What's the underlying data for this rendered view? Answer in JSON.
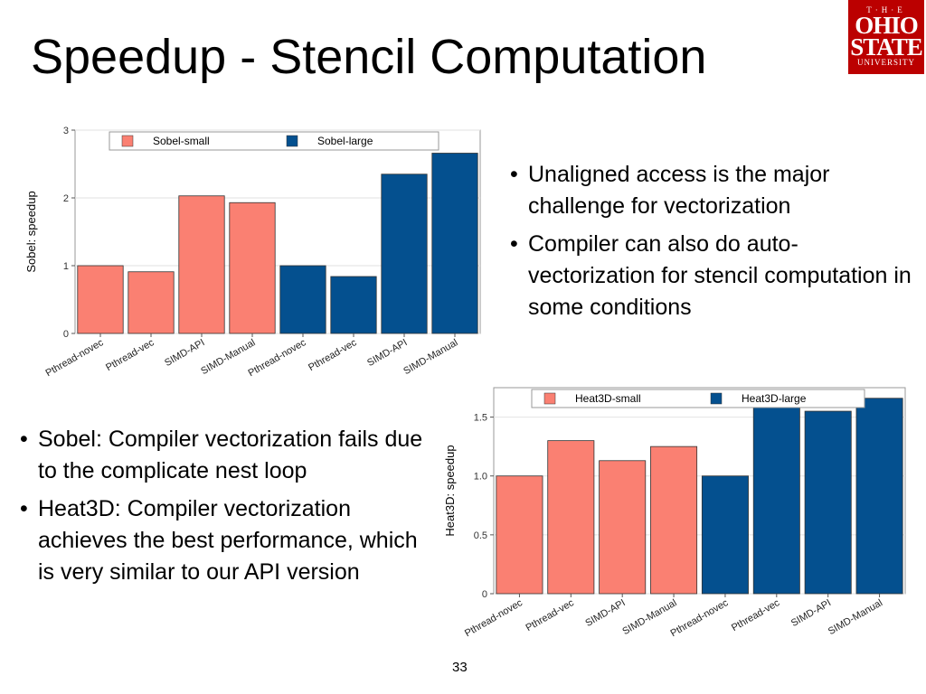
{
  "title": "Speedup - Stencil Computation",
  "logo": {
    "line1": "T·H·E",
    "line2": "OHIO",
    "line3": "STATE",
    "line4": "UNIVERSITY"
  },
  "bullets_right": [
    "Unaligned access is the major challenge for vectorization",
    "Compiler can also do auto-vectorization for stencil computation in some conditions"
  ],
  "bullets_left": [
    "Sobel: Compiler vectorization fails due to the complicate nest loop",
    "Heat3D: Compiler vectorization achieves the best performance, which is very similar to our API version"
  ],
  "page_number": "33",
  "colors": {
    "small": "#fa8072",
    "large": "#04508f"
  },
  "chart_data": [
    {
      "type": "bar",
      "ylabel": "Sobel: speedup",
      "xlabel": "",
      "ylim": [
        0,
        3
      ],
      "yticks": [
        0,
        1,
        2,
        3
      ],
      "ytick_labels": [
        "0",
        "1",
        "2",
        "3"
      ],
      "grid": true,
      "legend_position": "top",
      "categories": [
        "Pthread-novec",
        "Pthread-vec",
        "SIMD-API",
        "SIMD-Manual",
        "Pthread-novec",
        "Pthread-vec",
        "SIMD-API",
        "SIMD-Manual"
      ],
      "series": [
        {
          "name": "Sobel-small",
          "color": "#fa8072",
          "values": [
            1.0,
            0.91,
            2.03,
            1.93,
            null,
            null,
            null,
            null
          ]
        },
        {
          "name": "Sobel-large",
          "color": "#04508f",
          "values": [
            null,
            null,
            null,
            null,
            1.0,
            0.84,
            2.35,
            2.66
          ]
        }
      ]
    },
    {
      "type": "bar",
      "ylabel": "Heat3D: speedup",
      "xlabel": "",
      "ylim": [
        0,
        1.75
      ],
      "yticks": [
        0,
        0.5,
        1.0,
        1.5
      ],
      "ytick_labels": [
        "0",
        "0.5",
        "1.0",
        "1.5"
      ],
      "grid": true,
      "legend_position": "top",
      "categories": [
        "Pthread-novec",
        "Pthread-vec",
        "SIMD-API",
        "SIMD-Manual",
        "Pthread-novec",
        "Pthread-vec",
        "SIMD-API",
        "SIMD-Manual"
      ],
      "series": [
        {
          "name": "Heat3D-small",
          "color": "#fa8072",
          "values": [
            1.0,
            1.3,
            1.13,
            1.25,
            null,
            null,
            null,
            null
          ]
        },
        {
          "name": "Heat3D-large",
          "color": "#04508f",
          "values": [
            null,
            null,
            null,
            null,
            1.0,
            1.7,
            1.55,
            1.66
          ]
        }
      ]
    }
  ]
}
